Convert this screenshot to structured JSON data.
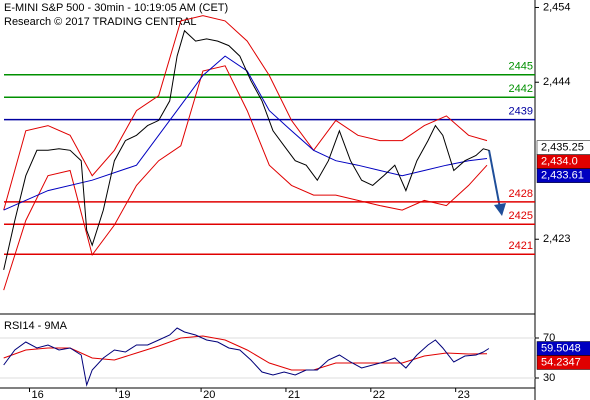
{
  "chart_data": [
    {
      "type": "line",
      "title": "E-MINI S&P 500 - 30min - 10:19:05 AM (CET)",
      "subtitle": "Research © 2017 TRADING CENTRAL",
      "xlim": [
        0,
        145
      ],
      "ylim": [
        2413,
        2455
      ],
      "yticks": [
        {
          "value": 2454,
          "label": "2,454"
        },
        {
          "value": 2444,
          "label": "2,444"
        },
        {
          "value": 2423,
          "label": "2,423"
        }
      ],
      "levels": [
        {
          "value": 2445,
          "color": "#009000"
        },
        {
          "value": 2442,
          "color": "#009000"
        },
        {
          "value": 2439,
          "color": "#0000a0"
        },
        {
          "value": 2428,
          "color": "#e00000"
        },
        {
          "value": 2425,
          "color": "#e00000"
        },
        {
          "value": 2421,
          "color": "#e00000"
        }
      ],
      "price_labels": [
        {
          "value": 2435.25,
          "label": "2,435.25",
          "color": "#ffffff",
          "text_color": "#000000"
        },
        {
          "value": 2434.0,
          "label": "2,434.0",
          "color": "#e00000",
          "text_color": "#ffffff"
        },
        {
          "value": 2433.61,
          "label": "2,433.61",
          "color": "#0000c0",
          "text_color": "#ffffff"
        }
      ],
      "series": [
        {
          "color": "#e00000",
          "x": [
            1,
            7,
            13,
            19,
            25,
            31,
            37,
            43,
            49,
            55,
            61,
            67,
            73,
            79,
            85,
            91,
            97,
            103,
            109,
            115,
            121,
            127,
            132
          ],
          "values": [
            2426.9,
            2437.5,
            2438.2,
            2436.9,
            2431.5,
            2434.9,
            2440.2,
            2442.2,
            2452.2,
            2452.9,
            2452.2,
            2449.5,
            2444.9,
            2438.9,
            2434.9,
            2438.9,
            2436.9,
            2436.2,
            2436.2,
            2438.2,
            2439.5,
            2436.9,
            2436.2
          ]
        },
        {
          "color": "#e00000",
          "x": [
            1,
            7,
            13,
            19,
            25,
            31,
            37,
            43,
            49,
            55,
            61,
            67,
            73,
            79,
            85,
            91,
            97,
            103,
            109,
            115,
            121,
            127,
            132
          ],
          "values": [
            2416.2,
            2425.5,
            2431.5,
            2432.2,
            2420.9,
            2424.9,
            2430.2,
            2433.5,
            2435.5,
            2445.5,
            2446.2,
            2440.2,
            2432.9,
            2430.2,
            2428.9,
            2428.9,
            2428.2,
            2427.5,
            2426.9,
            2428.2,
            2427.5,
            2430.2,
            2432.9
          ]
        },
        {
          "color": "#0000c0",
          "x": [
            1,
            13,
            25,
            37,
            49,
            55,
            61,
            67,
            73,
            79,
            85,
            91,
            97,
            103,
            109,
            115,
            121,
            127,
            132
          ],
          "values": [
            2426.9,
            2429.5,
            2430.9,
            2432.9,
            2440.9,
            2444.9,
            2447.5,
            2445.5,
            2440.2,
            2437.5,
            2434.9,
            2433.5,
            2432.9,
            2432.2,
            2431.5,
            2432.2,
            2432.9,
            2433.5,
            2433.8
          ]
        },
        {
          "color": "#000000",
          "x": [
            1,
            4,
            7,
            10,
            13,
            16,
            19,
            22,
            23.5,
            25,
            28,
            31,
            34,
            37,
            40,
            43,
            46,
            48,
            50,
            53,
            56,
            59,
            62,
            65,
            68,
            71,
            74,
            77,
            80,
            83,
            86,
            89,
            92,
            95,
            98,
            101,
            104,
            107,
            110,
            113,
            116,
            118,
            120,
            123,
            126,
            129,
            131,
            132.5
          ],
          "values": [
            2418.9,
            2425.5,
            2431.5,
            2434.9,
            2434.9,
            2435.1,
            2434.9,
            2433.5,
            2424.2,
            2422.2,
            2426.9,
            2433.5,
            2436.2,
            2436.9,
            2438.2,
            2438.9,
            2441.5,
            2447.5,
            2450.9,
            2449.5,
            2449.8,
            2449.5,
            2448.9,
            2447.5,
            2444.2,
            2441.5,
            2437.5,
            2435.5,
            2433.5,
            2432.9,
            2430.9,
            2433.5,
            2437.5,
            2433.5,
            2430.9,
            2430.2,
            2431.5,
            2432.9,
            2429.5,
            2433.5,
            2436.2,
            2438.2,
            2436.9,
            2432.2,
            2433.5,
            2434.2,
            2435.1,
            2434.9
          ]
        }
      ]
    },
    {
      "type": "line",
      "title": "RSI14 - 9MA",
      "xlim": [
        0,
        145
      ],
      "xticks": [
        {
          "value": 8,
          "label": "16"
        },
        {
          "value": 31.5,
          "label": "19"
        },
        {
          "value": 54.5,
          "label": "20"
        },
        {
          "value": 77.5,
          "label": "21"
        },
        {
          "value": 100.5,
          "label": "22"
        },
        {
          "value": 123.5,
          "label": "23"
        }
      ],
      "ylim": [
        20,
        90
      ],
      "yticks": [
        30,
        70
      ],
      "price_labels": [
        {
          "value": 59.5048,
          "label": "59.5048",
          "color": "#0000c0",
          "text_color": "#ffffff"
        },
        {
          "value": 54.2347,
          "label": "54.2347",
          "color": "#e00000",
          "text_color": "#ffffff"
        }
      ],
      "series": [
        {
          "color": "#e00000",
          "x": [
            1,
            7,
            13,
            19,
            25,
            31,
            37,
            43,
            49,
            55,
            61,
            67,
            73,
            79,
            85,
            91,
            97,
            103,
            109,
            115,
            121,
            127,
            132
          ],
          "values": [
            50,
            58,
            60,
            60,
            50,
            48,
            55,
            62,
            70,
            72,
            68,
            58,
            45,
            38,
            38,
            45,
            45,
            45,
            45,
            52,
            55,
            54,
            54.2
          ]
        },
        {
          "color": "#00007a",
          "x": [
            1,
            4,
            7,
            10,
            13,
            16,
            19,
            22,
            23.5,
            25,
            28,
            31,
            34,
            37,
            40,
            43,
            46,
            48,
            50,
            53,
            56,
            59,
            62,
            65,
            68,
            71,
            74,
            77,
            80,
            83,
            86,
            89,
            92,
            95,
            98,
            101,
            104,
            107,
            110,
            113,
            116,
            118,
            120,
            123,
            126,
            129,
            131,
            132.5
          ],
          "values": [
            43,
            58,
            66,
            60,
            63,
            58,
            60,
            53,
            23,
            38,
            50,
            58,
            56,
            63,
            63,
            68,
            73,
            80,
            76,
            73,
            68,
            66,
            60,
            58,
            48,
            36,
            33,
            36,
            33,
            38,
            38,
            48,
            53,
            46,
            40,
            43,
            46,
            50,
            40,
            53,
            63,
            68,
            60,
            46,
            52,
            53,
            56,
            59.5
          ]
        }
      ]
    }
  ]
}
